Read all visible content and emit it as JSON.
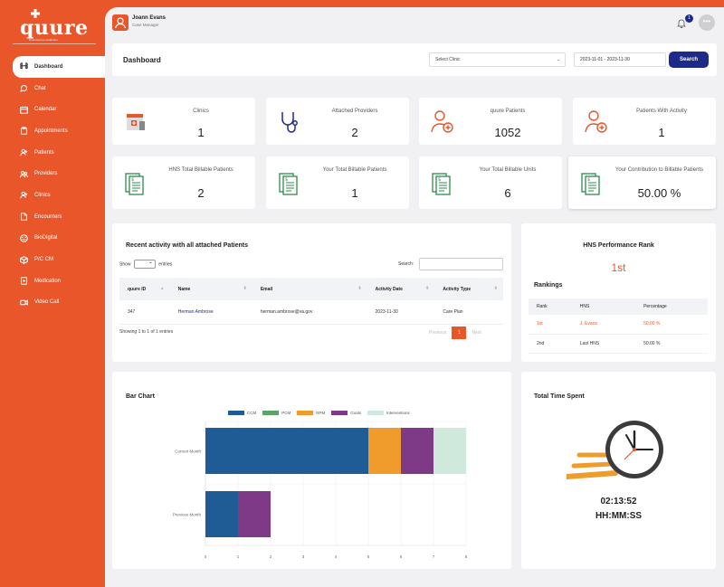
{
  "brand": {
    "name": "quure",
    "tagline": "Empowering Healthcare",
    "color": "#e8562a",
    "accent": "#1e2a8a"
  },
  "user": {
    "name": "Joann Evans",
    "role": "Case Manager"
  },
  "notifications": {
    "count": "1"
  },
  "more_label": "•••",
  "sidebar": {
    "items": [
      {
        "label": "Dashboard",
        "icon": "command-icon",
        "active": true
      },
      {
        "label": "Chat",
        "icon": "chat-icon"
      },
      {
        "label": "Calendar",
        "icon": "calendar-icon"
      },
      {
        "label": "Appointments",
        "icon": "clipboard-icon"
      },
      {
        "label": "Patients",
        "icon": "user-plus-icon"
      },
      {
        "label": "Providers",
        "icon": "users-icon"
      },
      {
        "label": "Clinics",
        "icon": "user-plus-icon"
      },
      {
        "label": "Encounters",
        "icon": "file-icon"
      },
      {
        "label": "BioDigital",
        "icon": "smile-icon"
      },
      {
        "label": "P/C CM",
        "icon": "box-icon"
      },
      {
        "label": "Medication",
        "icon": "file-med-icon"
      },
      {
        "label": "Video Call",
        "icon": "video-icon"
      }
    ]
  },
  "header": {
    "title": "Dashboard",
    "clinic_select": "Select Clinic",
    "date_range": "2023-11-01 - 2023-11-30",
    "search_label": "Search"
  },
  "stats": [
    {
      "label": "Clinics",
      "value": "1",
      "icon": "clinic-building-icon"
    },
    {
      "label": "Attached Providers",
      "value": "2",
      "icon": "stethoscope-icon"
    },
    {
      "label": "quure Patients",
      "value": "1052",
      "icon": "add-patient-icon"
    },
    {
      "label": "Patients With Activity",
      "value": "1",
      "icon": "add-patient-icon"
    },
    {
      "label": "HNS Total Billable Patients",
      "value": "2",
      "icon": "billing-docs-icon"
    },
    {
      "label": "Your Total Billable Patients",
      "value": "1",
      "icon": "billing-docs-icon"
    },
    {
      "label": "Your Total Billable Units",
      "value": "6",
      "icon": "billing-docs-icon"
    },
    {
      "label": "Your Contribution to Billable Patients",
      "value": "50.00 %",
      "icon": "billing-docs-icon"
    }
  ],
  "activity": {
    "title": "Recent activity with all attached Patients",
    "show_label": "Show",
    "entries_label": "entries",
    "search_label": "Search:",
    "columns": [
      "quure ID",
      "Name",
      "Email",
      "Activity Date",
      "Activity Type"
    ],
    "rows": [
      [
        "347",
        "Herman Ambrose",
        "herman.ambrose@va.gov",
        "2023-11-30",
        "Care Plan"
      ]
    ],
    "showing": "Showing 1 to 1 of 1 entries",
    "prev": "Previous",
    "page": "1",
    "next": "Next"
  },
  "rank": {
    "title": "HNS Performance Rank",
    "value": "1st",
    "rankings_title": "Rankings",
    "columns": [
      "Rank",
      "HNS",
      "Percentage"
    ],
    "rows": [
      [
        "1st",
        "J. Evans",
        "50.00 %"
      ],
      [
        "2nd",
        "Last HNS",
        "50.00 %"
      ]
    ]
  },
  "chart_data": {
    "type": "bar",
    "orientation": "horizontal",
    "stacked": true,
    "title": "Bar Chart",
    "categories": [
      "Current Month",
      "Previous Month"
    ],
    "series": [
      {
        "name": "CCM",
        "color": "#1f5b94",
        "values": [
          5,
          1
        ]
      },
      {
        "name": "PCM",
        "color": "#5ca26b",
        "values": [
          0,
          0
        ]
      },
      {
        "name": "RPM",
        "color": "#ef9c2c",
        "values": [
          1,
          0
        ]
      },
      {
        "name": "Goals",
        "color": "#7e3a86",
        "values": [
          1,
          1
        ]
      },
      {
        "name": "Interventions",
        "color": "#cfe9dd",
        "values": [
          1,
          0
        ]
      }
    ],
    "xlim": [
      0,
      8
    ],
    "xticks": [
      "0",
      "1",
      "2",
      "3",
      "4",
      "5",
      "6",
      "7",
      "8"
    ],
    "grid": true,
    "legend": "top"
  },
  "time": {
    "title": "Total Time Spent",
    "value": "02:13:52",
    "format": "HH:MM:SS"
  }
}
